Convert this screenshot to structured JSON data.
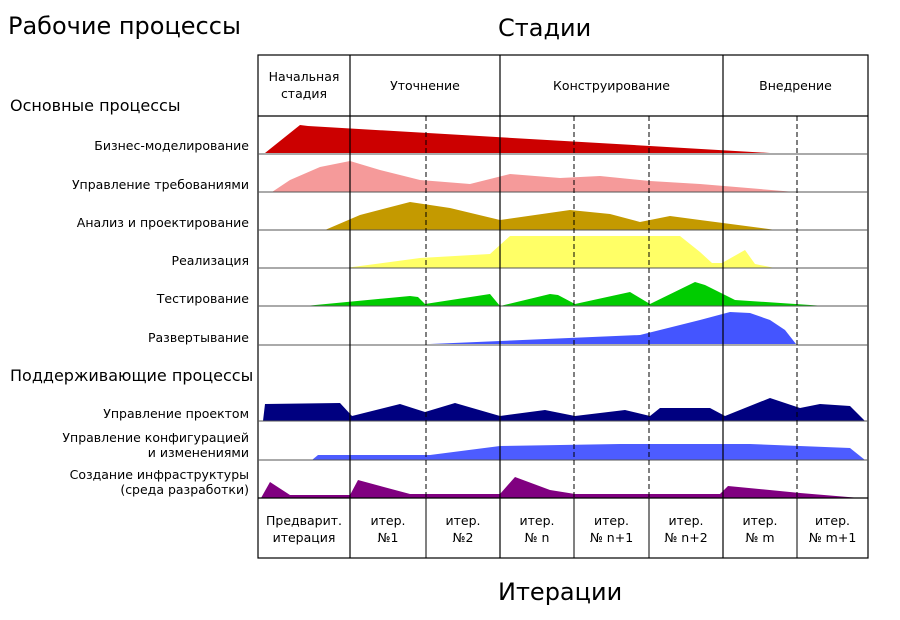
{
  "titles": {
    "workflows": "Рабочие процессы",
    "phases": "Стадии",
    "iterations": "Итерации",
    "core": "Основные процессы",
    "supporting": "Поддерживающие процессы"
  },
  "phases": [
    {
      "line1": "Начальная",
      "line2": "стадия"
    },
    {
      "line1": "Уточнение",
      "line2": ""
    },
    {
      "line1": "Конструирование",
      "line2": ""
    },
    {
      "line1": "Внедрение",
      "line2": ""
    }
  ],
  "iterations": [
    {
      "line1": "Предварит.",
      "line2": "итерация"
    },
    {
      "line1": "итер.",
      "line2": "№1"
    },
    {
      "line1": "итер.",
      "line2": "№2"
    },
    {
      "line1": "итер.",
      "line2": "№ n"
    },
    {
      "line1": "итер.",
      "line2": "№ n+1"
    },
    {
      "line1": "итер.",
      "line2": "№ n+2"
    },
    {
      "line1": "итер.",
      "line2": "№ m"
    },
    {
      "line1": "итер.",
      "line2": "№ m+1"
    }
  ],
  "processes": [
    {
      "line1": "Бизнес-моделирование",
      "line2": "",
      "color": "#cc0000"
    },
    {
      "line1": "Управление требованиями",
      "line2": "",
      "color": "#f59a9a"
    },
    {
      "line1": "Анализ и проектирование",
      "line2": "",
      "color": "#c49a00"
    },
    {
      "line1": "Реализация",
      "line2": "",
      "color": "#ffff66"
    },
    {
      "line1": "Тестирование",
      "line2": "",
      "color": "#00cc00"
    },
    {
      "line1": "Развертывание",
      "line2": "",
      "color": "#4455ff"
    },
    {
      "line1": "Управление проектом",
      "line2": "",
      "color": "#000080"
    },
    {
      "line1": "Управление конфигурацией",
      "line2": "и изменениями",
      "color": "#4d5cff"
    },
    {
      "line1": "Создание инфраструктуры",
      "line2": "(среда разработки)",
      "color": "#800080"
    }
  ]
}
